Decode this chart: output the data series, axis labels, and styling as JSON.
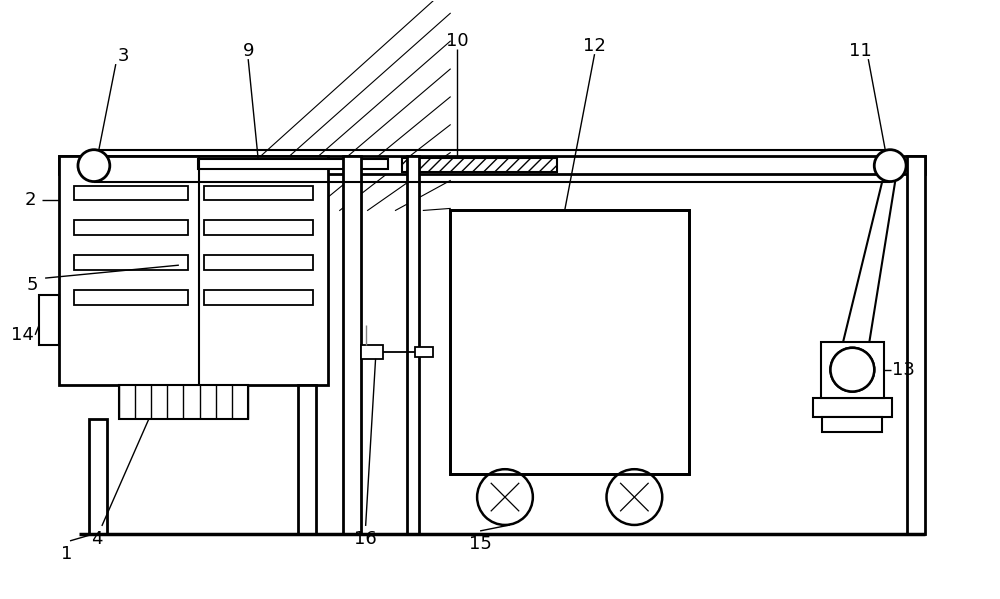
{
  "bg_color": "#ffffff",
  "line_color": "#000000",
  "figsize": [
    10.0,
    5.99
  ],
  "dpi": 100
}
